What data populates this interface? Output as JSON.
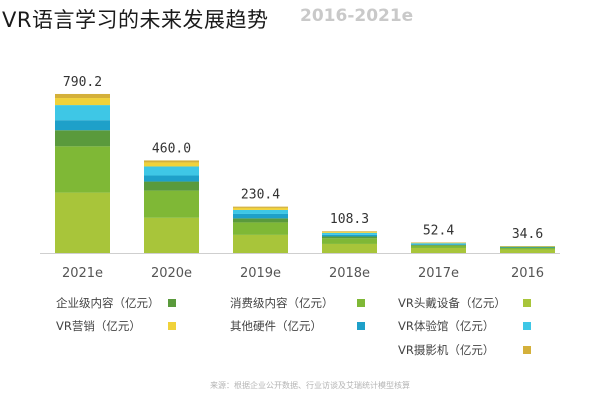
{
  "overlay_title": "VR语言学习的未来发展趋势",
  "background_title": "2016-2021e",
  "source_note": "来源：根据企业公开数据、行业访谈及艾瑞统计模型核算",
  "chart_data": {
    "type": "bar",
    "stacked": true,
    "categories": [
      "2021e",
      "2020e",
      "2019e",
      "2018e",
      "2017e",
      "2016"
    ],
    "totals": [
      "790.2",
      "460.0",
      "230.4",
      "108.3",
      "52.4",
      "34.6"
    ],
    "total_values": [
      790.2,
      460.0,
      230.4,
      108.3,
      52.4,
      34.6
    ],
    "series": [
      {
        "name": "VR头戴设备（亿元）",
        "color": "#a8c53a",
        "values": [
          300,
          175,
          90,
          45,
          25,
          17
        ]
      },
      {
        "name": "消费级内容（亿元）",
        "color": "#7fb836",
        "values": [
          230,
          135,
          62,
          28,
          11,
          8
        ]
      },
      {
        "name": "企业级内容（亿元）",
        "color": "#5a9a3c",
        "values": [
          80,
          45,
          20,
          9,
          4,
          2.5
        ]
      },
      {
        "name": "其他硬件（亿元）",
        "color": "#1ea0c9",
        "values": [
          50,
          30,
          22,
          8,
          4,
          2.5
        ]
      },
      {
        "name": "VR体验馆（亿元）",
        "color": "#3ec7e6",
        "values": [
          75,
          45,
          20,
          10,
          5,
          2.5
        ]
      },
      {
        "name": "VR营销（亿元）",
        "color": "#f0d23a",
        "values": [
          35,
          20,
          10,
          5,
          2,
          1
        ]
      },
      {
        "name": "VR摄影机（亿元）",
        "color": "#d4b03a",
        "values": [
          20.2,
          10,
          6.4,
          3.3,
          1.4,
          1.1
        ]
      }
    ],
    "ylim": [
      0,
      800
    ],
    "legend": [
      {
        "label": "企业级内容（亿元）",
        "color": "#5a9a3c"
      },
      {
        "label": "消费级内容（亿元）",
        "color": "#7fb836"
      },
      {
        "label": "VR头戴设备（亿元）",
        "color": "#a8c53a"
      },
      {
        "label": "VR营销（亿元）",
        "color": "#f0d23a"
      },
      {
        "label": "其他硬件（亿元）",
        "color": "#1ea0c9"
      },
      {
        "label": "VR体验馆（亿元）",
        "color": "#3ec7e6"
      },
      {
        "label": "VR摄影机（亿元）",
        "color": "#d4b03a"
      }
    ],
    "legend_placement": "bottom"
  }
}
